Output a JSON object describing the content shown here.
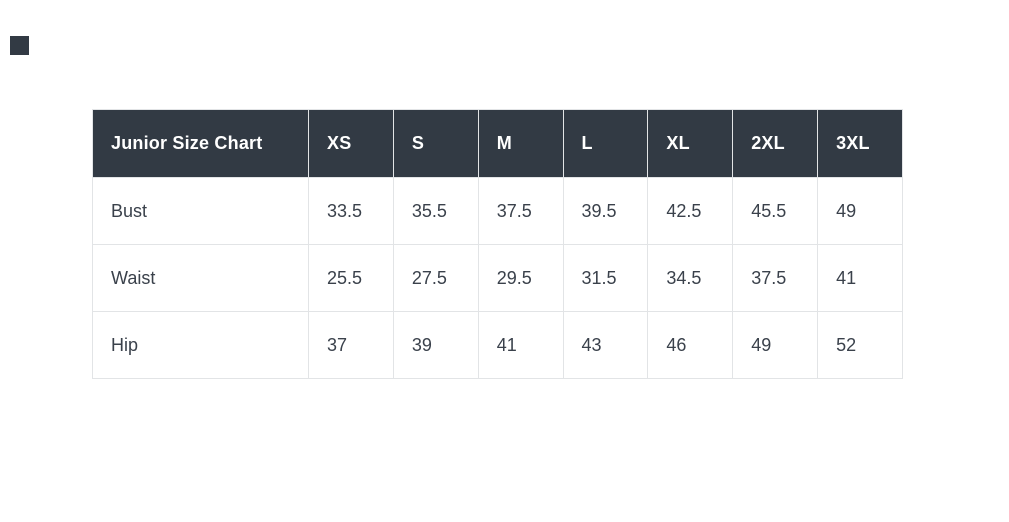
{
  "chart_data": {
    "type": "table",
    "title": "Junior Size Chart",
    "columns": [
      "XS",
      "S",
      "M",
      "L",
      "XL",
      "2XL",
      "3XL"
    ],
    "rows": [
      {
        "label": "Bust",
        "values": [
          33.5,
          35.5,
          37.5,
          39.5,
          42.5,
          45.5,
          49
        ]
      },
      {
        "label": "Waist",
        "values": [
          25.5,
          27.5,
          29.5,
          31.5,
          34.5,
          37.5,
          41
        ]
      },
      {
        "label": "Hip",
        "values": [
          37,
          39,
          41,
          43,
          46,
          49,
          52
        ]
      }
    ],
    "layout_hints": {
      "header_row": "dark background, white text, top of table",
      "grid": true,
      "alignment": "left"
    }
  },
  "colors": {
    "page_background": "#ffffff",
    "header_background": "#323a44",
    "header_text": "#ffffff",
    "body_text": "#3a414b",
    "border": "#e2e4e6",
    "corner_square": "#323a44"
  }
}
